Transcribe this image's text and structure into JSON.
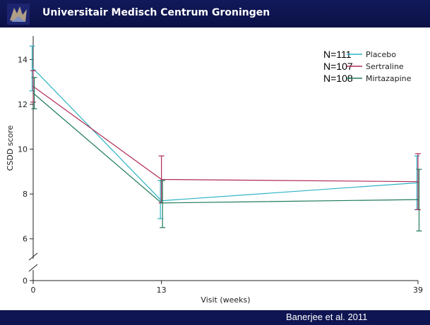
{
  "header": {
    "title": "Universitair Medisch Centrum Groningen",
    "logo_icon": "umcg-logo-icon"
  },
  "footer": {
    "credit": "Banerjee et al. 2011"
  },
  "colors": {
    "header_bg": "#12195a",
    "placebo": "#2bb3c6",
    "sertraline": "#b02a54",
    "mirtazapine": "#1f7a5a"
  },
  "chart_data": {
    "type": "line",
    "xlabel": "Visit (weeks)",
    "ylabel": "CSDD score",
    "x": [
      0,
      13,
      39
    ],
    "x_tick_labels": [
      "0",
      "13",
      "39"
    ],
    "y_ticks": [
      0,
      6,
      8,
      10,
      12,
      14
    ],
    "y_axis_break": true,
    "ylim_lower": [
      0,
      0.5
    ],
    "ylim_upper": [
      5.3,
      14.8
    ],
    "legend_position": "top-right",
    "series": [
      {
        "name": "Placebo",
        "n": "N=111",
        "color": "#2bb3c6",
        "values": [
          13.6,
          7.7,
          8.5
        ],
        "err_low": [
          12.6,
          6.9,
          7.3
        ],
        "err_high": [
          14.6,
          8.6,
          9.7
        ]
      },
      {
        "name": "Sertraline",
        "n": "N=107",
        "color": "#b02a54",
        "values": [
          12.8,
          8.65,
          8.55
        ],
        "err_low": [
          12.1,
          7.6,
          7.3
        ],
        "err_high": [
          13.5,
          9.7,
          9.8
        ]
      },
      {
        "name": "Mirtazapine",
        "n": "N=108",
        "color": "#1f7a5a",
        "values": [
          12.5,
          7.6,
          7.75
        ],
        "err_low": [
          11.8,
          6.5,
          6.35
        ],
        "err_high": [
          13.2,
          8.6,
          9.1
        ]
      }
    ]
  }
}
